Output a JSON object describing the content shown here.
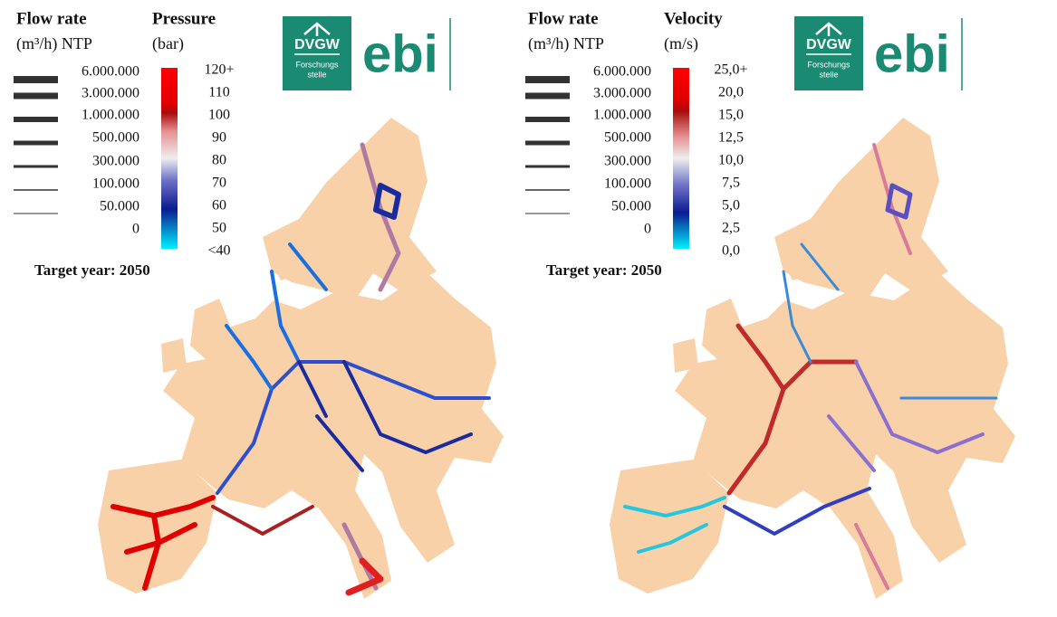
{
  "panels": [
    {
      "flow_title": "Flow rate",
      "flow_unit": "(m³/h) NTP",
      "flow_labels": [
        "6.000.000",
        "3.000.000",
        "1.000.000",
        "500.000",
        "300.000",
        "100.000",
        "50.000",
        "0"
      ],
      "scale_title": "Pressure",
      "scale_unit": "(bar)",
      "scale_labels": [
        "120+",
        "110",
        "100",
        "90",
        "80",
        "70",
        "60",
        "50",
        "<40"
      ],
      "logo": {
        "brand": "DVGW",
        "line1": "Forschungs",
        "line2": "stelle",
        "name": "ebi"
      },
      "target": "Target year: 2050"
    },
    {
      "flow_title": "Flow rate",
      "flow_unit": "(m³/h) NTP",
      "flow_labels": [
        "6.000.000",
        "3.000.000",
        "1.000.000",
        "500.000",
        "300.000",
        "100.000",
        "50.000",
        "0"
      ],
      "scale_title": "Velocity",
      "scale_unit": "(m/s)",
      "scale_labels": [
        "25,0+",
        "20,0",
        "15,0",
        "12,5",
        "10,0",
        "7,5",
        "5,0",
        "2,5",
        "0,0"
      ],
      "logo": {
        "brand": "DVGW",
        "line1": "Forschungs",
        "line2": "stelle",
        "name": "ebi"
      },
      "target": "Target year: 2050"
    }
  ]
}
